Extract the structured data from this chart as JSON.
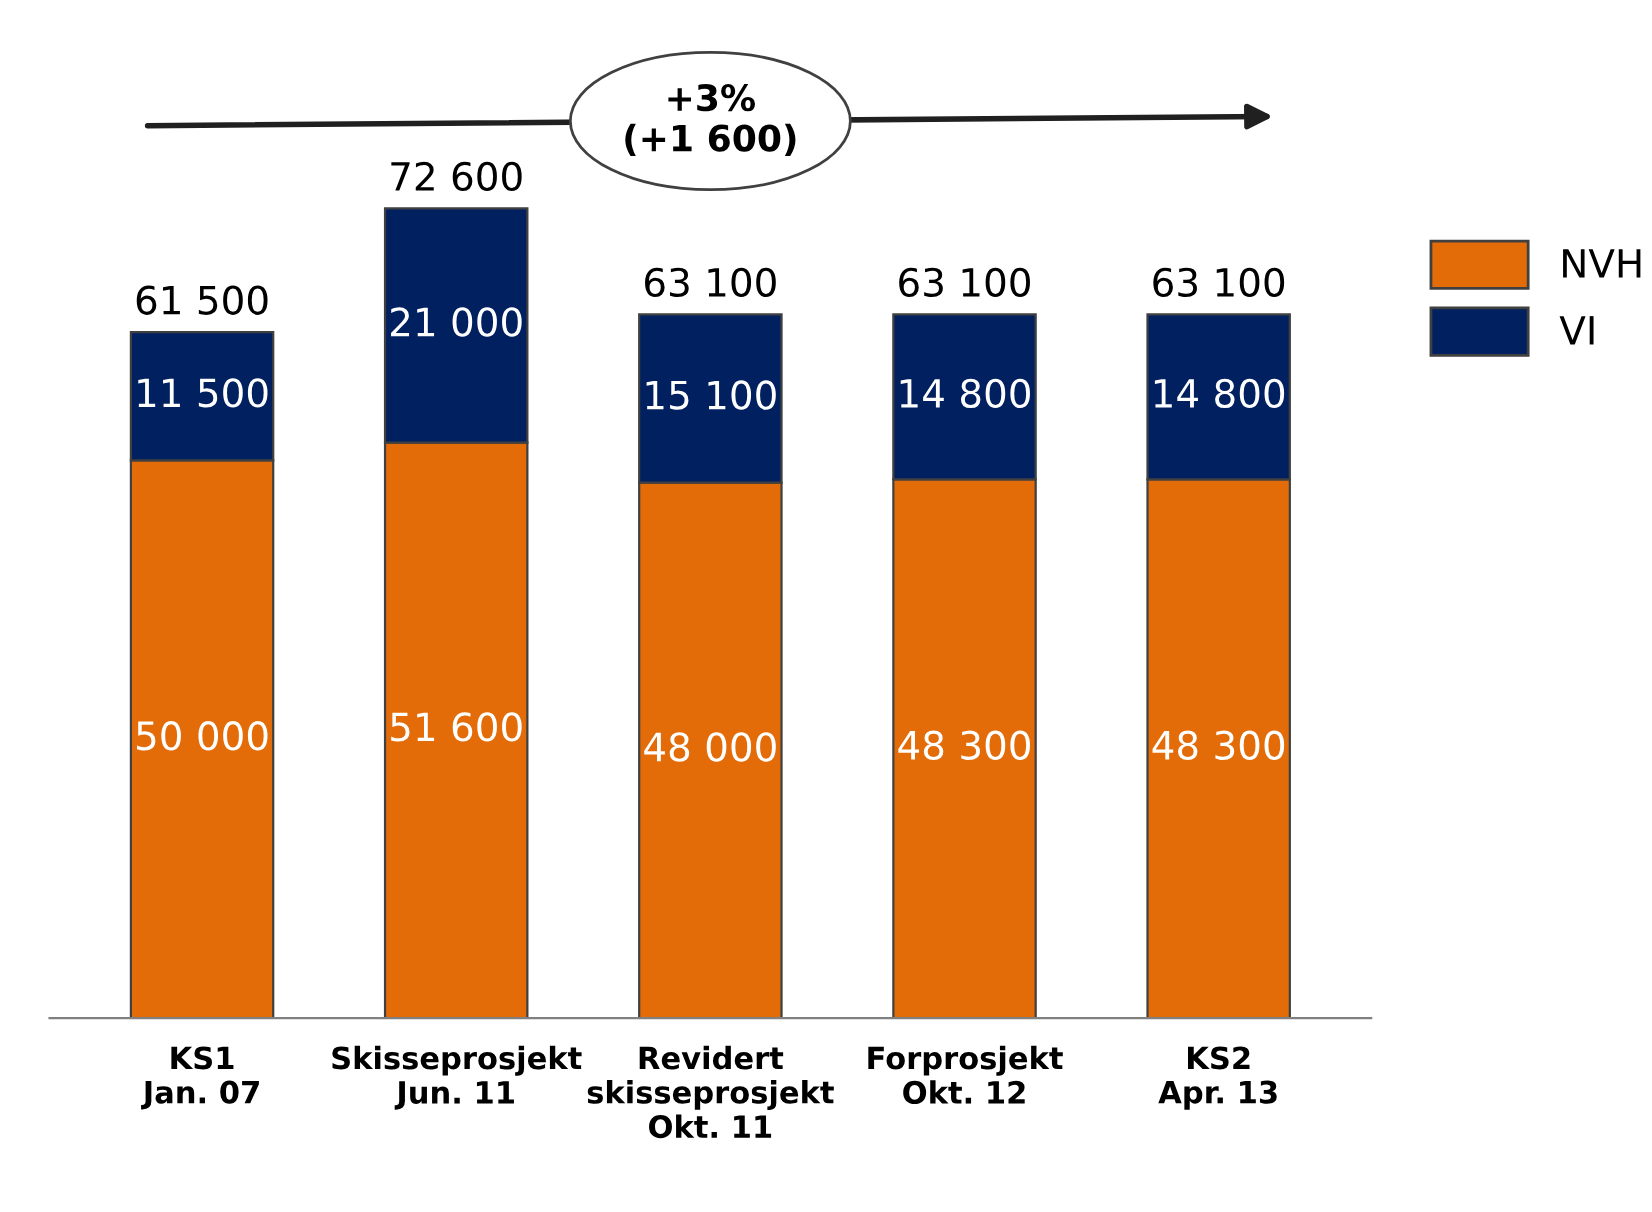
{
  "chart_data": {
    "type": "bar",
    "stacked": true,
    "categories": [
      "KS1\nJan. 07",
      "Skisseprosjekt\nJun. 11",
      "Revidert\nskisseprosjekt\nOkt. 11",
      "Forprosjekt\nOkt. 12",
      "KS2\nApr. 13"
    ],
    "series": [
      {
        "name": "NVH",
        "color": "#e36c09",
        "values": [
          50000,
          51600,
          48000,
          48300,
          48300
        ]
      },
      {
        "name": "VI",
        "color": "#002060",
        "values": [
          11500,
          21000,
          15100,
          14800,
          14800
        ]
      }
    ],
    "totals": [
      "61 500",
      "72 600",
      "63 100",
      "63 100",
      "63 100"
    ],
    "data_labels": true,
    "annotations": [
      "+3%\n(+1 600)"
    ],
    "legend": "top right",
    "grid": false
  }
}
